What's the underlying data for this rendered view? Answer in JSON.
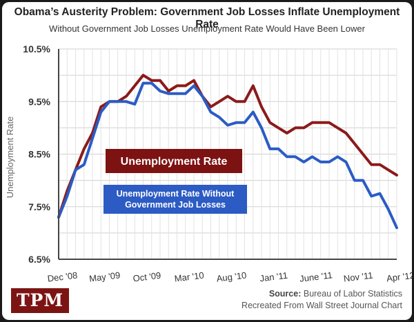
{
  "title": "Obama’s Austerity Problem: Government Job Losses Inflate Unemployment Rate",
  "subtitle": "Without Government Job Losses Unemployment Rate Would Have Been Lower",
  "logo": "TPM",
  "source": {
    "label": "Source:",
    "text": "Bureau of Labor Statistics",
    "line2": "Recreated From Wall Street Journal Chart"
  },
  "colors": {
    "unemployment": "#8b1a1a",
    "without_gov": "#2b5cc4",
    "label_box_red": "#7d1212",
    "label_box_blue": "#2c5bc4"
  },
  "chart_data": {
    "type": "line",
    "ylabel": "Unemployment Rate",
    "ylim": [
      6.5,
      10.5
    ],
    "yticks": [
      "10.5%",
      "9.5%",
      "8.5%",
      "7.5%",
      "6.5%"
    ],
    "ytick_values": [
      10.5,
      9.5,
      8.5,
      7.5,
      6.5
    ],
    "x_ticks": [
      "Dec '08",
      "May '09",
      "Oct '09",
      "Mar '10",
      "Aug '10",
      "Jan '11",
      "June '11",
      "Nov '11",
      "Apr '12"
    ],
    "x_tick_index": [
      0,
      5,
      10,
      15,
      20,
      25,
      30,
      35,
      40
    ],
    "grid": true,
    "x": [
      "2008-12",
      "2009-01",
      "2009-02",
      "2009-03",
      "2009-04",
      "2009-05",
      "2009-06",
      "2009-07",
      "2009-08",
      "2009-09",
      "2009-10",
      "2009-11",
      "2009-12",
      "2010-01",
      "2010-02",
      "2010-03",
      "2010-04",
      "2010-05",
      "2010-06",
      "2010-07",
      "2010-08",
      "2010-09",
      "2010-10",
      "2010-11",
      "2010-12",
      "2011-01",
      "2011-02",
      "2011-03",
      "2011-04",
      "2011-05",
      "2011-06",
      "2011-07",
      "2011-08",
      "2011-09",
      "2011-10",
      "2011-11",
      "2011-12",
      "2012-01",
      "2012-02",
      "2012-03",
      "2012-04"
    ],
    "series": [
      {
        "name": "Unemployment Rate",
        "values": [
          7.3,
          7.8,
          8.2,
          8.6,
          8.9,
          9.4,
          9.5,
          9.5,
          9.6,
          9.8,
          10.0,
          9.9,
          9.9,
          9.7,
          9.8,
          9.8,
          9.9,
          9.6,
          9.4,
          9.5,
          9.6,
          9.5,
          9.5,
          9.8,
          9.4,
          9.1,
          9.0,
          8.9,
          9.0,
          9.0,
          9.1,
          9.1,
          9.1,
          9.0,
          8.9,
          8.7,
          8.5,
          8.3,
          8.3,
          8.2,
          8.1
        ]
      },
      {
        "name": "Unemployment Rate Without Government Job Losses",
        "values": [
          7.3,
          7.7,
          8.2,
          8.3,
          8.8,
          9.3,
          9.5,
          9.5,
          9.5,
          9.45,
          9.85,
          9.85,
          9.7,
          9.65,
          9.65,
          9.65,
          9.8,
          9.6,
          9.3,
          9.2,
          9.05,
          9.1,
          9.1,
          9.3,
          9.0,
          8.6,
          8.6,
          8.45,
          8.45,
          8.35,
          8.45,
          8.35,
          8.35,
          8.45,
          8.35,
          8.0,
          8.0,
          7.7,
          7.75,
          7.45,
          7.1
        ]
      }
    ]
  }
}
